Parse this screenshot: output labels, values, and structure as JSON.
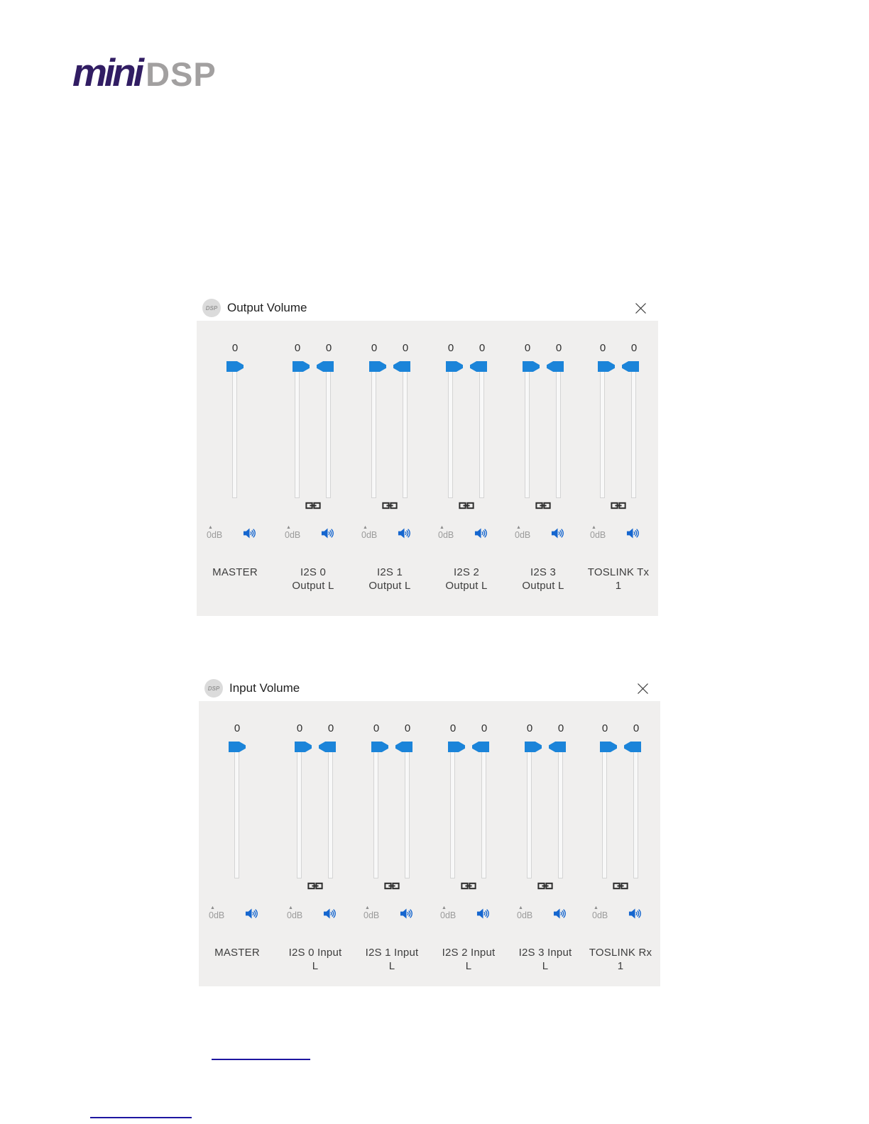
{
  "theme": {
    "accent_blue": "#1b84d9",
    "speaker_blue": "#1566cf",
    "window_body": "#f0efee",
    "link_line_blue": "#1e16a0",
    "logo_purple": "#311d63",
    "logo_gray": "#a2a0a0",
    "label_dark": "#3d3d3d",
    "gain_gray": "#9b9b9b",
    "value_dark": "#2e2e2e",
    "title_dark": "#1f1f1f"
  },
  "logo": {
    "mini": "mini",
    "dsp": "DSP"
  },
  "icons": {
    "gain_arrow": "▲",
    "app_badge": "DSP",
    "close": "x-cross",
    "link": "chain-link",
    "speaker": "speaker-with-sound-waves"
  },
  "windows": [
    {
      "title": "Output Volume",
      "icon_text": "DSP",
      "channels": [
        {
          "label": "MASTER",
          "gain_label": "0dB",
          "linked": false,
          "sliders": [
            {
              "value": "0"
            }
          ]
        },
        {
          "label": "I2S 0\nOutput L",
          "gain_label": "0dB",
          "linked": true,
          "sliders": [
            {
              "value": "0"
            },
            {
              "value": "0"
            }
          ]
        },
        {
          "label": "I2S 1\nOutput L",
          "gain_label": "0dB",
          "linked": true,
          "sliders": [
            {
              "value": "0"
            },
            {
              "value": "0"
            }
          ]
        },
        {
          "label": "I2S 2\nOutput L",
          "gain_label": "0dB",
          "linked": true,
          "sliders": [
            {
              "value": "0"
            },
            {
              "value": "0"
            }
          ]
        },
        {
          "label": "I2S 3\nOutput L",
          "gain_label": "0dB",
          "linked": true,
          "sliders": [
            {
              "value": "0"
            },
            {
              "value": "0"
            }
          ]
        },
        {
          "label": "TOSLINK Tx\n1",
          "gain_label": "0dB",
          "linked": true,
          "sliders": [
            {
              "value": "0"
            },
            {
              "value": "0"
            }
          ]
        }
      ]
    },
    {
      "title": "Input Volume",
      "icon_text": "DSP",
      "channels": [
        {
          "label": "MASTER",
          "gain_label": "0dB",
          "linked": false,
          "sliders": [
            {
              "value": "0"
            }
          ]
        },
        {
          "label": "I2S 0 Input\nL",
          "gain_label": "0dB",
          "linked": true,
          "sliders": [
            {
              "value": "0"
            },
            {
              "value": "0"
            }
          ]
        },
        {
          "label": "I2S 1 Input\nL",
          "gain_label": "0dB",
          "linked": true,
          "sliders": [
            {
              "value": "0"
            },
            {
              "value": "0"
            }
          ]
        },
        {
          "label": "I2S 2 Input\nL",
          "gain_label": "0dB",
          "linked": true,
          "sliders": [
            {
              "value": "0"
            },
            {
              "value": "0"
            }
          ]
        },
        {
          "label": "I2S 3 Input\nL",
          "gain_label": "0dB",
          "linked": true,
          "sliders": [
            {
              "value": "0"
            },
            {
              "value": "0"
            }
          ]
        },
        {
          "label": "TOSLINK Rx\n1",
          "gain_label": "0dB",
          "linked": true,
          "sliders": [
            {
              "value": "0"
            },
            {
              "value": "0"
            }
          ]
        }
      ]
    }
  ]
}
